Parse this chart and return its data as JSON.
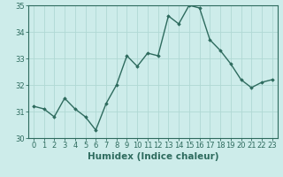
{
  "x": [
    0,
    1,
    2,
    3,
    4,
    5,
    6,
    7,
    8,
    9,
    10,
    11,
    12,
    13,
    14,
    15,
    16,
    17,
    18,
    19,
    20,
    21,
    22,
    23
  ],
  "y": [
    31.2,
    31.1,
    30.8,
    31.5,
    31.1,
    30.8,
    30.3,
    31.3,
    32.0,
    33.1,
    32.7,
    33.2,
    33.1,
    34.6,
    34.3,
    35.0,
    34.9,
    33.7,
    33.3,
    32.8,
    32.2,
    31.9,
    32.1,
    32.2
  ],
  "line_color": "#2e6b5e",
  "marker": "D",
  "marker_size": 1.8,
  "line_width": 1.0,
  "bg_color": "#cdecea",
  "grid_color": "#b0d8d4",
  "xlabel": "Humidex (Indice chaleur)",
  "ylabel": "",
  "ylim": [
    30,
    35
  ],
  "xlim_min": -0.5,
  "xlim_max": 23.5,
  "yticks": [
    30,
    31,
    32,
    33,
    34,
    35
  ],
  "xticks": [
    0,
    1,
    2,
    3,
    4,
    5,
    6,
    7,
    8,
    9,
    10,
    11,
    12,
    13,
    14,
    15,
    16,
    17,
    18,
    19,
    20,
    21,
    22,
    23
  ],
  "tick_label_size": 6.0,
  "xlabel_size": 7.5,
  "tick_color": "#2e6b5e",
  "spine_color": "#2e6b5e"
}
